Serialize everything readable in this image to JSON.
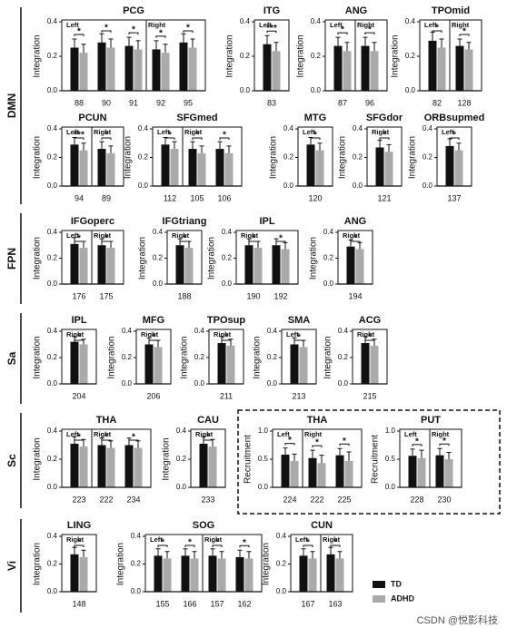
{
  "groups": [
    "DMN",
    "FPN",
    "Sa",
    "Sc",
    "Vi"
  ],
  "legend": [
    {
      "name": "TD",
      "color": "#111111"
    },
    {
      "name": "ADHD",
      "color": "#aaaaaa"
    }
  ],
  "watermark": "CSDN @悦影科技",
  "chart_data": [
    {
      "type": "bar",
      "title": "PCG",
      "ylabel": "Integration",
      "categories": [
        "88",
        "90",
        "91",
        "92",
        "95"
      ],
      "hemisphere": [
        "Left",
        "Left",
        "Left",
        "Right",
        "Right"
      ],
      "significance": [
        "*",
        "*",
        "*",
        "*",
        "*"
      ],
      "series": [
        {
          "values": [
            0.25,
            0.28,
            0.26,
            0.24,
            0.28
          ],
          "errors": [
            0.05,
            0.05,
            0.05,
            0.05,
            0.05
          ]
        },
        {
          "values": [
            0.22,
            0.25,
            0.24,
            0.22,
            0.25
          ],
          "errors": [
            0.05,
            0.05,
            0.05,
            0.05,
            0.05
          ]
        }
      ],
      "ylim": [
        0,
        0.4
      ],
      "yticks": [
        {
          "value": 0,
          "label": "0.0"
        },
        0.2,
        0.4
      ]
    },
    {
      "type": "bar",
      "title": "ITG",
      "ylabel": "Integration",
      "categories": [
        "83"
      ],
      "hemisphere": [
        "Left"
      ],
      "significance": [
        "***"
      ],
      "series": [
        {
          "values": [
            0.27
          ],
          "errors": [
            0.05
          ]
        },
        {
          "values": [
            0.23
          ],
          "errors": [
            0.05
          ]
        }
      ],
      "ylim": [
        0,
        0.4
      ],
      "yticks": [
        {
          "value": 0,
          "label": "0.0"
        },
        0.2,
        0.4
      ]
    },
    {
      "type": "bar",
      "title": "ANG",
      "ylabel": "Integration",
      "categories": [
        "87",
        "96"
      ],
      "hemisphere": [
        "Left",
        "Right"
      ],
      "significance": [
        "*",
        "*"
      ],
      "series": [
        {
          "values": [
            0.26,
            0.26
          ],
          "errors": [
            0.05,
            0.05
          ]
        },
        {
          "values": [
            0.23,
            0.23
          ],
          "errors": [
            0.05,
            0.05
          ]
        }
      ],
      "ylim": [
        0,
        0.4
      ],
      "yticks": [
        {
          "value": 0,
          "label": "0.0"
        },
        0.2,
        0.4
      ]
    },
    {
      "type": "bar",
      "title": "TPOmid",
      "ylabel": "Integration",
      "categories": [
        "82",
        "128"
      ],
      "hemisphere": [
        "Left",
        "Right"
      ],
      "significance": [
        "*",
        "*"
      ],
      "series": [
        {
          "values": [
            0.29,
            0.26
          ],
          "errors": [
            0.05,
            0.04
          ]
        },
        {
          "values": [
            0.25,
            0.24
          ],
          "errors": [
            0.05,
            0.04
          ]
        }
      ],
      "ylim": [
        0,
        0.4
      ],
      "yticks": [
        {
          "value": 0,
          "label": "0.0"
        },
        0.2,
        0.4
      ]
    },
    {
      "type": "bar",
      "title": "PCUN",
      "ylabel": "Integration",
      "categories": [
        "94",
        "89"
      ],
      "hemisphere": [
        "Left",
        "Right"
      ],
      "significance": [
        "***",
        "*"
      ],
      "series": [
        {
          "values": [
            0.29,
            0.26
          ],
          "errors": [
            0.05,
            0.05
          ]
        },
        {
          "values": [
            0.25,
            0.23
          ],
          "errors": [
            0.05,
            0.05
          ]
        }
      ],
      "ylim": [
        0,
        0.4
      ],
      "yticks": [
        {
          "value": 0,
          "label": "0.0"
        },
        0.2,
        0.4
      ]
    },
    {
      "type": "bar",
      "title": "SFGmed",
      "ylabel": "Integration",
      "categories": [
        "112",
        "105",
        "106"
      ],
      "hemisphere": [
        "Left",
        "Right",
        "Right"
      ],
      "significance": [
        "*",
        "*",
        "*"
      ],
      "series": [
        {
          "values": [
            0.29,
            0.26,
            0.26
          ],
          "errors": [
            0.05,
            0.05,
            0.05
          ]
        },
        {
          "values": [
            0.26,
            0.23,
            0.23
          ],
          "errors": [
            0.05,
            0.05,
            0.05
          ]
        }
      ],
      "ylim": [
        0,
        0.4
      ],
      "yticks": [
        {
          "value": 0,
          "label": "0.0"
        },
        0.2,
        0.4
      ]
    },
    {
      "type": "bar",
      "title": "MTG",
      "ylabel": "Integration",
      "categories": [
        "120"
      ],
      "hemisphere": [
        "Left"
      ],
      "significance": [
        "*"
      ],
      "series": [
        {
          "values": [
            0.29
          ],
          "errors": [
            0.05
          ]
        },
        {
          "values": [
            0.25
          ],
          "errors": [
            0.05
          ]
        }
      ],
      "ylim": [
        0,
        0.4
      ],
      "yticks": [
        {
          "value": 0,
          "label": "0.0"
        },
        0.2,
        0.4
      ]
    },
    {
      "type": "bar",
      "title": "SFGdor",
      "ylabel": "Integration",
      "categories": [
        "121"
      ],
      "hemisphere": [
        "Right"
      ],
      "significance": [
        "*"
      ],
      "series": [
        {
          "values": [
            0.27
          ],
          "errors": [
            0.05
          ]
        },
        {
          "values": [
            0.24
          ],
          "errors": [
            0.05
          ]
        }
      ],
      "ylim": [
        0,
        0.4
      ],
      "yticks": [
        {
          "value": 0,
          "label": "0.0"
        },
        0.2,
        0.4
      ]
    },
    {
      "type": "bar",
      "title": "ORBsupmed",
      "ylabel": "Integration",
      "categories": [
        "137"
      ],
      "hemisphere": [
        "Left"
      ],
      "significance": [
        "*"
      ],
      "series": [
        {
          "values": [
            0.28
          ],
          "errors": [
            0.05
          ]
        },
        {
          "values": [
            0.25
          ],
          "errors": [
            0.05
          ]
        }
      ],
      "ylim": [
        0,
        0.4
      ],
      "yticks": [
        {
          "value": 0,
          "label": "0.0"
        },
        0.2,
        0.4
      ]
    },
    {
      "type": "bar",
      "title": "IFGoperc",
      "ylabel": "Integration",
      "categories": [
        "176",
        "175"
      ],
      "hemisphere": [
        "Left",
        "Right"
      ],
      "significance": [
        "*",
        "*"
      ],
      "series": [
        {
          "values": [
            0.31,
            0.3
          ],
          "errors": [
            0.05,
            0.05
          ]
        },
        {
          "values": [
            0.28,
            0.28
          ],
          "errors": [
            0.05,
            0.05
          ]
        }
      ],
      "ylim": [
        0,
        0.4
      ],
      "yticks": [
        {
          "value": 0,
          "label": "0.0"
        },
        0.2,
        0.4
      ]
    },
    {
      "type": "bar",
      "title": "IFGtriang",
      "ylabel": "Integration",
      "categories": [
        "188"
      ],
      "hemisphere": [
        "Right"
      ],
      "significance": [
        "*"
      ],
      "series": [
        {
          "values": [
            0.3
          ],
          "errors": [
            0.05
          ]
        },
        {
          "values": [
            0.28
          ],
          "errors": [
            0.05
          ]
        }
      ],
      "ylim": [
        0,
        0.4
      ],
      "yticks": [
        {
          "value": 0,
          "label": "0.0"
        },
        0.2,
        0.4
      ]
    },
    {
      "type": "bar",
      "title": "IPL",
      "ylabel": "Integration",
      "categories": [
        "190",
        "192"
      ],
      "hemisphere": [
        "Right",
        "Right"
      ],
      "significance": [
        "*",
        "*"
      ],
      "series": [
        {
          "values": [
            0.3,
            0.3
          ],
          "errors": [
            0.05,
            0.05
          ]
        },
        {
          "values": [
            0.28,
            0.27
          ],
          "errors": [
            0.05,
            0.05
          ]
        }
      ],
      "ylim": [
        0,
        0.4
      ],
      "yticks": [
        {
          "value": 0,
          "label": "0.0"
        },
        0.2,
        0.4
      ]
    },
    {
      "type": "bar",
      "title": "ANG",
      "ylabel": "Integration",
      "categories": [
        "194"
      ],
      "hemisphere": [
        "Right"
      ],
      "significance": [
        "*"
      ],
      "series": [
        {
          "values": [
            0.29
          ],
          "errors": [
            0.05
          ]
        },
        {
          "values": [
            0.27
          ],
          "errors": [
            0.05
          ]
        }
      ],
      "ylim": [
        0,
        0.4
      ],
      "yticks": [
        {
          "value": 0,
          "label": "0.0"
        },
        0.2,
        0.4
      ]
    },
    {
      "type": "bar",
      "title": "IPL",
      "ylabel": "Integration",
      "categories": [
        "204"
      ],
      "hemisphere": [
        "Right"
      ],
      "significance": [
        "*"
      ],
      "series": [
        {
          "values": [
            0.32
          ],
          "errors": [
            0.04
          ]
        },
        {
          "values": [
            0.3
          ],
          "errors": [
            0.04
          ]
        }
      ],
      "ylim": [
        0,
        0.4
      ],
      "yticks": [
        {
          "value": 0,
          "label": "0.0"
        },
        0.2,
        0.4
      ]
    },
    {
      "type": "bar",
      "title": "MFG",
      "ylabel": "Integration",
      "categories": [
        "206"
      ],
      "hemisphere": [
        "Right"
      ],
      "significance": [
        "*"
      ],
      "series": [
        {
          "values": [
            0.3
          ],
          "errors": [
            0.05
          ]
        },
        {
          "values": [
            0.28
          ],
          "errors": [
            0.05
          ]
        }
      ],
      "ylim": [
        0,
        0.4
      ],
      "yticks": [
        {
          "value": 0,
          "label": "0.0"
        },
        0.2,
        0.4
      ]
    },
    {
      "type": "bar",
      "title": "TPOsup",
      "ylabel": "Integration",
      "categories": [
        "211"
      ],
      "hemisphere": [
        "Right"
      ],
      "significance": [
        "*"
      ],
      "series": [
        {
          "values": [
            0.31
          ],
          "errors": [
            0.05
          ]
        },
        {
          "values": [
            0.29
          ],
          "errors": [
            0.05
          ]
        }
      ],
      "ylim": [
        0,
        0.4
      ],
      "yticks": [
        {
          "value": 0,
          "label": "0.0"
        },
        0.2,
        0.4
      ]
    },
    {
      "type": "bar",
      "title": "SMA",
      "ylabel": "Integration",
      "categories": [
        "213"
      ],
      "hemisphere": [
        "Left"
      ],
      "significance": [
        "*"
      ],
      "series": [
        {
          "values": [
            0.3
          ],
          "errors": [
            0.05
          ]
        },
        {
          "values": [
            0.28
          ],
          "errors": [
            0.05
          ]
        }
      ],
      "ylim": [
        0,
        0.4
      ],
      "yticks": [
        {
          "value": 0,
          "label": "0.0"
        },
        0.2,
        0.4
      ]
    },
    {
      "type": "bar",
      "title": "ACG",
      "ylabel": "Integration",
      "categories": [
        "215"
      ],
      "hemisphere": [
        "Right"
      ],
      "significance": [
        "*"
      ],
      "series": [
        {
          "values": [
            0.31
          ],
          "errors": [
            0.05
          ]
        },
        {
          "values": [
            0.29
          ],
          "errors": [
            0.05
          ]
        }
      ],
      "ylim": [
        0,
        0.4
      ],
      "yticks": [
        {
          "value": 0,
          "label": "0.0"
        },
        0.2,
        0.4
      ]
    },
    {
      "type": "bar",
      "title": "THA",
      "ylabel": "Integration",
      "categories": [
        "223",
        "222",
        "234"
      ],
      "hemisphere": [
        "Left",
        "Right",
        "Right"
      ],
      "significance": [
        "*",
        "*",
        "*"
      ],
      "series": [
        {
          "values": [
            0.31,
            0.3,
            0.3
          ],
          "errors": [
            0.05,
            0.05,
            0.05
          ]
        },
        {
          "values": [
            0.29,
            0.28,
            0.28
          ],
          "errors": [
            0.05,
            0.05,
            0.05
          ]
        }
      ],
      "ylim": [
        0,
        0.4
      ],
      "yticks": [
        {
          "value": 0,
          "label": "0.0"
        },
        0.2,
        0.4
      ]
    },
    {
      "type": "bar",
      "title": "CAU",
      "ylabel": "Integration",
      "categories": [
        "233"
      ],
      "hemisphere": [
        "Right"
      ],
      "significance": [
        "*"
      ],
      "series": [
        {
          "values": [
            0.31
          ],
          "errors": [
            0.05
          ]
        },
        {
          "values": [
            0.29
          ],
          "errors": [
            0.05
          ]
        }
      ],
      "ylim": [
        0,
        0.4
      ],
      "yticks": [
        {
          "value": 0,
          "label": "0.0"
        },
        0.2,
        0.4
      ]
    },
    {
      "type": "bar",
      "title": "THA",
      "ylabel": "Recruitment",
      "categories": [
        "224",
        "222",
        "225"
      ],
      "hemisphere": [
        "Left",
        "Right",
        "Right"
      ],
      "significance": [
        "*",
        "*",
        "*"
      ],
      "series": [
        {
          "values": [
            0.58,
            0.52,
            0.57
          ],
          "errors": [
            0.12,
            0.14,
            0.12
          ]
        },
        {
          "values": [
            0.47,
            0.43,
            0.47
          ],
          "errors": [
            0.12,
            0.14,
            0.16
          ]
        }
      ],
      "ylim": [
        0,
        1
      ],
      "yticks": [
        {
          "value": 0,
          "label": "0.0"
        },
        0.5,
        {
          "value": 1,
          "label": "1.0"
        }
      ]
    },
    {
      "type": "bar",
      "title": "PUT",
      "ylabel": "Recruitment",
      "categories": [
        "228",
        "230"
      ],
      "hemisphere": [
        "Left",
        "Right"
      ],
      "significance": [
        "*",
        "*"
      ],
      "series": [
        {
          "values": [
            0.56,
            0.57
          ],
          "errors": [
            0.12,
            0.12
          ]
        },
        {
          "values": [
            0.52,
            0.5
          ],
          "errors": [
            0.14,
            0.12
          ]
        }
      ],
      "ylim": [
        0,
        1
      ],
      "yticks": [
        {
          "value": 0,
          "label": "0.0"
        },
        0.5,
        {
          "value": 1,
          "label": "1.0"
        }
      ]
    },
    {
      "type": "bar",
      "title": "LING",
      "ylabel": "Integration",
      "categories": [
        "148"
      ],
      "hemisphere": [
        "Right"
      ],
      "significance": [
        "*"
      ],
      "series": [
        {
          "values": [
            0.27
          ],
          "errors": [
            0.05
          ]
        },
        {
          "values": [
            0.25
          ],
          "errors": [
            0.05
          ]
        }
      ],
      "ylim": [
        0,
        0.4
      ],
      "yticks": [
        {
          "value": 0,
          "label": "0.0"
        },
        0.2,
        0.4
      ]
    },
    {
      "type": "bar",
      "title": "SOG",
      "ylabel": "Integration",
      "categories": [
        "155",
        "166",
        "157",
        "162"
      ],
      "hemisphere": [
        "Left",
        "Left",
        "Right",
        "Right"
      ],
      "significance": [
        "*",
        "*",
        "*",
        "*"
      ],
      "series": [
        {
          "values": [
            0.26,
            0.26,
            0.26,
            0.25
          ],
          "errors": [
            0.05,
            0.05,
            0.05,
            0.05
          ]
        },
        {
          "values": [
            0.24,
            0.24,
            0.24,
            0.24
          ],
          "errors": [
            0.05,
            0.05,
            0.05,
            0.05
          ]
        }
      ],
      "ylim": [
        0,
        0.4
      ],
      "yticks": [
        {
          "value": 0,
          "label": "0.0"
        },
        0.2,
        0.4
      ]
    },
    {
      "type": "bar",
      "title": "CUN",
      "ylabel": "Integration",
      "categories": [
        "167",
        "163"
      ],
      "hemisphere": [
        "Left",
        "Right"
      ],
      "significance": [
        "*",
        "*"
      ],
      "series": [
        {
          "values": [
            0.26,
            0.27
          ],
          "errors": [
            0.05,
            0.05
          ]
        },
        {
          "values": [
            0.24,
            0.24
          ],
          "errors": [
            0.05,
            0.05
          ]
        }
      ],
      "ylim": [
        0,
        0.4
      ],
      "yticks": [
        {
          "value": 0,
          "label": "0.0"
        },
        0.2,
        0.4
      ]
    }
  ]
}
